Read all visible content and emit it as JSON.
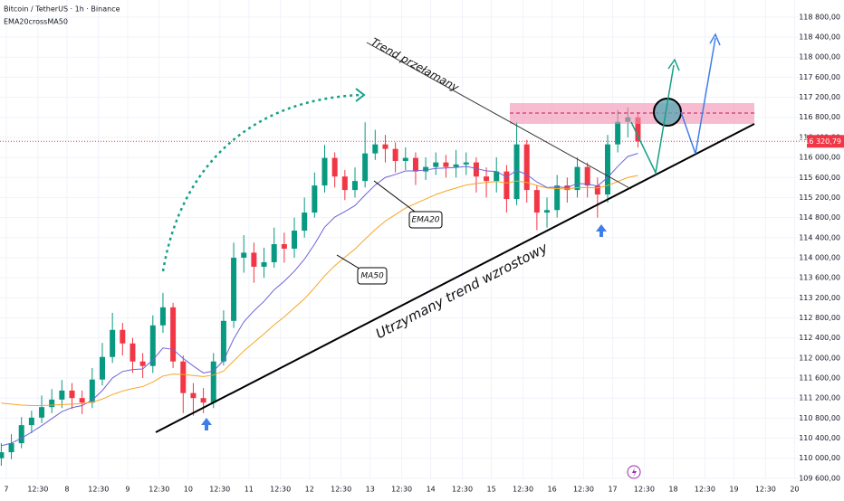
{
  "chart_data": {
    "type": "candlestick",
    "title": "Bitcoin / TetherUS · 1h · Binance",
    "subtitle": "EMA20crossMA50",
    "xlim": [
      -2.5,
      316.5
    ],
    "ylim": [
      109580,
      119140
    ],
    "grid": true,
    "up_color": "#089981",
    "down_color": "#f23645",
    "xticks": [
      {
        "value": 0,
        "label": "7"
      },
      {
        "value": 12.5,
        "label": "12:30"
      },
      {
        "value": 24,
        "label": "8"
      },
      {
        "value": 36.5,
        "label": "12:30"
      },
      {
        "value": 48,
        "label": "9"
      },
      {
        "value": 60.5,
        "label": "12:30"
      },
      {
        "value": 72,
        "label": "10"
      },
      {
        "value": 84.5,
        "label": "12:30"
      },
      {
        "value": 96,
        "label": "11"
      },
      {
        "value": 108.5,
        "label": "12:30"
      },
      {
        "value": 120,
        "label": "12"
      },
      {
        "value": 132.5,
        "label": "12:30"
      },
      {
        "value": 144,
        "label": "13"
      },
      {
        "value": 156.5,
        "label": "12:30"
      },
      {
        "value": 168,
        "label": "14"
      },
      {
        "value": 180.5,
        "label": "12:30"
      },
      {
        "value": 192,
        "label": "15"
      },
      {
        "value": 204.5,
        "label": "12:30"
      },
      {
        "value": 216,
        "label": "16"
      },
      {
        "value": 228.5,
        "label": "12:30"
      },
      {
        "value": 240,
        "label": "17"
      },
      {
        "value": 252.5,
        "label": "12:30"
      },
      {
        "value": 264,
        "label": "18"
      },
      {
        "value": 276.5,
        "label": "12:30"
      },
      {
        "value": 288,
        "label": "19"
      },
      {
        "value": 300.5,
        "label": "12:30"
      },
      {
        "value": 312,
        "label": "20"
      }
    ],
    "yticks": [
      {
        "value": 109600,
        "label": "109 600,00"
      },
      {
        "value": 110000,
        "label": "110 000,00"
      },
      {
        "value": 110400,
        "label": "110 400,00"
      },
      {
        "value": 110800,
        "label": "110 800,00"
      },
      {
        "value": 111200,
        "label": "111 200,00"
      },
      {
        "value": 111600,
        "label": "111 600,00"
      },
      {
        "value": 112000,
        "label": "112 000,00"
      },
      {
        "value": 112400,
        "label": "112 400,00"
      },
      {
        "value": 112800,
        "label": "112 800,00"
      },
      {
        "value": 113200,
        "label": "113 200,00"
      },
      {
        "value": 113600,
        "label": "113 600,00"
      },
      {
        "value": 114000,
        "label": "114 000,00"
      },
      {
        "value": 114400,
        "label": "114 400,00"
      },
      {
        "value": 114800,
        "label": "114 800,00"
      },
      {
        "value": 115200,
        "label": "115 200,00"
      },
      {
        "value": 115600,
        "label": "115 600,00"
      },
      {
        "value": 116000,
        "label": "116 000,00"
      },
      {
        "value": 116400,
        "label": "116 400,00"
      },
      {
        "value": 116800,
        "label": "116 800,00"
      },
      {
        "value": 117200,
        "label": "117 200,00"
      },
      {
        "value": 117600,
        "label": "117 600,00"
      },
      {
        "value": 118000,
        "label": "118 000,00"
      },
      {
        "value": 118400,
        "label": "118 400,00"
      },
      {
        "value": 118800,
        "label": "118 800,00"
      }
    ],
    "x": [
      -2,
      2,
      6,
      10,
      14,
      18,
      22,
      26,
      30,
      34,
      38,
      42,
      46,
      50,
      54,
      58,
      62,
      66,
      70,
      74,
      78,
      82,
      86,
      90,
      94,
      98,
      102,
      106,
      110,
      114,
      118,
      122,
      126,
      130,
      134,
      138,
      142,
      146,
      150,
      154,
      158,
      162,
      166,
      170,
      174,
      178,
      182,
      186,
      190,
      194,
      198,
      202,
      206,
      210,
      214,
      218,
      222,
      226,
      230,
      234,
      238,
      242,
      246,
      250
    ],
    "open": [
      110000,
      110120,
      110300,
      110660,
      110810,
      111020,
      111170,
      111350,
      111200,
      111110,
      111570,
      112020,
      112560,
      112290,
      111930,
      111840,
      112650,
      113010,
      111930,
      111300,
      111200,
      111110,
      111930,
      112740,
      114000,
      114100,
      113820,
      113910,
      114270,
      114180,
      114540,
      114900,
      115440,
      115990,
      115620,
      115350,
      115530,
      116080,
      116260,
      116170,
      115930,
      115990,
      115720,
      115810,
      115900,
      115810,
      115860,
      115900,
      115620,
      115530,
      115720,
      115170,
      116260,
      115350,
      114900,
      114950,
      115440,
      115350,
      115810,
      115440,
      115260,
      116260,
      116710,
      116800
    ],
    "high": [
      110300,
      110480,
      110820,
      110950,
      111250,
      111380,
      111560,
      111500,
      111350,
      111800,
      112300,
      112900,
      112700,
      112400,
      112100,
      112850,
      113300,
      113100,
      112050,
      111500,
      111400,
      112100,
      112950,
      114300,
      114450,
      114300,
      114200,
      114600,
      114500,
      114800,
      115200,
      115700,
      116250,
      116100,
      115750,
      115800,
      116700,
      116550,
      116450,
      116300,
      116200,
      116100,
      116000,
      116100,
      116050,
      116150,
      116100,
      116000,
      115800,
      116000,
      115850,
      116700,
      116350,
      115450,
      115200,
      115650,
      115600,
      116000,
      115900,
      115600,
      116450,
      116950,
      117000,
      116900
    ],
    "low": [
      109850,
      109980,
      110200,
      110500,
      110700,
      110900,
      111000,
      110980,
      110880,
      111000,
      111450,
      111900,
      112050,
      111700,
      111600,
      111700,
      112500,
      111800,
      110900,
      110850,
      110900,
      111000,
      111850,
      112600,
      113700,
      113500,
      113600,
      113800,
      113900,
      114000,
      114400,
      114800,
      115300,
      115400,
      115150,
      115200,
      115400,
      115950,
      115900,
      115700,
      115750,
      115450,
      115550,
      115650,
      115600,
      115600,
      115650,
      115300,
      115200,
      115300,
      114900,
      115050,
      115100,
      114550,
      114600,
      114800,
      115100,
      115200,
      115200,
      114800,
      115100,
      116100,
      116400,
      116200
    ],
    "close": [
      110120,
      110300,
      110660,
      110810,
      111020,
      111170,
      111350,
      111200,
      111110,
      111570,
      112020,
      112560,
      112290,
      111930,
      111840,
      112650,
      113010,
      111930,
      111300,
      111200,
      111110,
      111930,
      112740,
      114000,
      114100,
      113820,
      113910,
      114270,
      114180,
      114540,
      114900,
      115440,
      115990,
      115620,
      115350,
      115530,
      116080,
      116260,
      116170,
      115930,
      115990,
      115720,
      115810,
      115900,
      115810,
      115860,
      115900,
      115620,
      115530,
      115720,
      115170,
      116260,
      115350,
      114900,
      114950,
      115440,
      115350,
      115810,
      115440,
      115260,
      116260,
      116710,
      116800,
      116320
    ],
    "series": [
      {
        "name": "EMA20",
        "color": "#6c63d9",
        "values": [
          110250,
          110300,
          110400,
          110520,
          110650,
          110790,
          110930,
          111010,
          111050,
          111160,
          111350,
          111600,
          111730,
          111770,
          111780,
          111960,
          112200,
          112170,
          111990,
          111840,
          111700,
          111740,
          111950,
          112380,
          112720,
          112940,
          113130,
          113360,
          113530,
          113730,
          113970,
          114270,
          114610,
          114810,
          114920,
          115040,
          115250,
          115450,
          115600,
          115660,
          115730,
          115730,
          115750,
          115780,
          115790,
          115800,
          115820,
          115780,
          115730,
          115720,
          115610,
          115740,
          115660,
          115510,
          115400,
          115410,
          115400,
          115480,
          115470,
          115430,
          115600,
          115820,
          116020,
          116080
        ]
      },
      {
        "name": "MA50",
        "color": "#f5a623",
        "values": [
          111100,
          111080,
          111060,
          111050,
          111050,
          111060,
          111070,
          111080,
          111090,
          111120,
          111180,
          111270,
          111340,
          111390,
          111430,
          111520,
          111640,
          111680,
          111670,
          111650,
          111630,
          111660,
          111740,
          111940,
          112140,
          112310,
          112480,
          112660,
          112820,
          113000,
          113180,
          113400,
          113640,
          113840,
          114010,
          114170,
          114370,
          114560,
          114730,
          114860,
          114990,
          115080,
          115170,
          115260,
          115330,
          115390,
          115450,
          115480,
          115500,
          115520,
          115490,
          115530,
          115500,
          115440,
          115390,
          115380,
          115370,
          115400,
          115400,
          115390,
          115440,
          115520,
          115600,
          115640
        ]
      }
    ],
    "last_price": {
      "value": 116320.79,
      "label": "116 320,79"
    },
    "annotations": {
      "broken": "Trend przełamany",
      "ema": "EMA20",
      "ma": "MA50",
      "uptrend": "Utrzymany trend wzrostowy"
    }
  }
}
